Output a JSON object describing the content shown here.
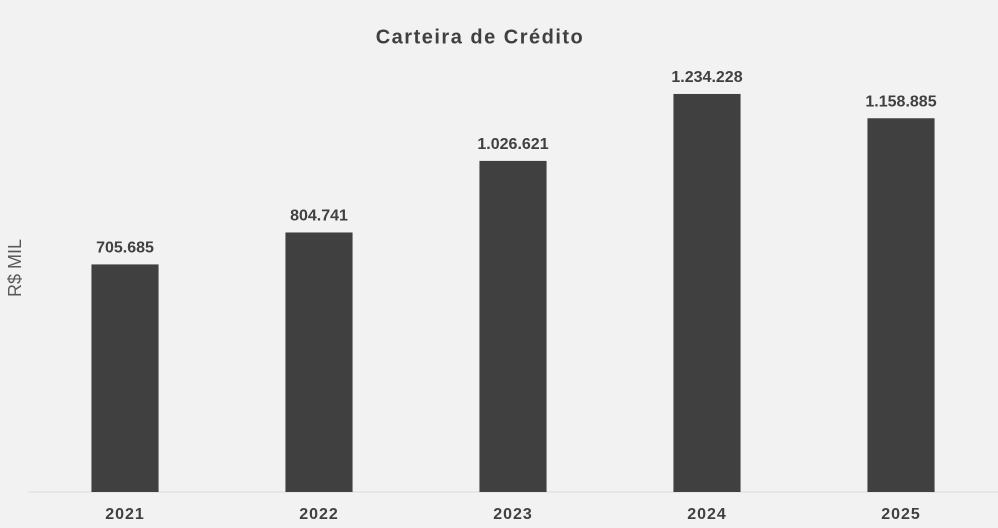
{
  "chart_data": {
    "type": "bar",
    "title": "Carteira de Crédito",
    "y_label": "R$ MIL",
    "categories": [
      "2021",
      "2022",
      "2023",
      "2024",
      "2025"
    ],
    "values": [
      705685,
      804741,
      1026621,
      1234228,
      1158885
    ],
    "value_labels": [
      "705.685",
      "804.741",
      "1.026.621",
      "1.234.228",
      "1.158.885"
    ],
    "color": "#404040",
    "ylim": [
      0,
      1400000
    ],
    "grid": false
  }
}
